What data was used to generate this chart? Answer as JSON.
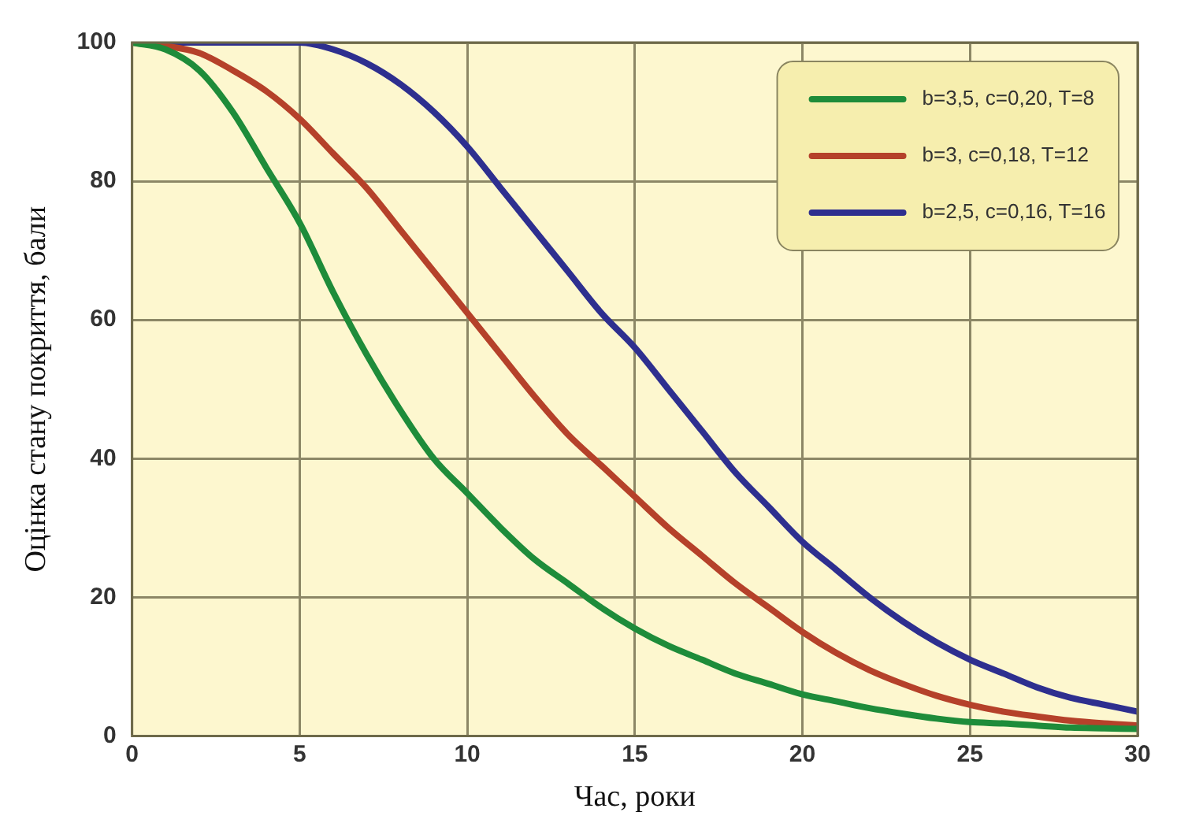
{
  "chart_data": {
    "type": "line",
    "xlabel": "Час, роки",
    "ylabel": "Оцінка стану покриття, бали",
    "x": [
      0,
      1,
      2,
      3,
      4,
      5,
      6,
      7,
      8,
      9,
      10,
      11,
      12,
      13,
      14,
      15,
      16,
      17,
      18,
      19,
      20,
      21,
      22,
      23,
      24,
      25,
      26,
      27,
      28,
      29,
      30
    ],
    "series": [
      {
        "name": "b=3,5, c=0,20, T=8",
        "color": "#1e8c3a",
        "values": [
          100,
          99,
          96,
          90,
          82,
          74,
          64,
          55,
          47,
          40,
          35,
          30,
          25.5,
          22,
          18.5,
          15.5,
          13,
          11,
          9,
          7.5,
          6,
          5,
          4,
          3.2,
          2.5,
          2,
          1.8,
          1.5,
          1.2,
          1.1,
          1
        ]
      },
      {
        "name": "b=3, c=0,18, T=12",
        "color": "#b5412a",
        "values": [
          100,
          99.5,
          98.5,
          96,
          93,
          89,
          84,
          79,
          73,
          67,
          61,
          55,
          49,
          43.5,
          39,
          34.5,
          30,
          26,
          22,
          18.5,
          15,
          12,
          9.5,
          7.5,
          5.8,
          4.5,
          3.5,
          2.8,
          2.2,
          1.8,
          1.5
        ]
      },
      {
        "name": "b=2,5, c=0,16, T=16",
        "color": "#2e2f8f",
        "values": [
          100,
          100,
          100,
          100,
          100,
          100,
          99,
          97,
          94,
          90,
          85,
          79,
          73,
          67,
          61,
          56,
          50,
          44,
          38,
          33,
          28,
          24,
          20,
          16.5,
          13.5,
          11,
          9,
          7,
          5.5,
          4.5,
          3.5
        ]
      }
    ],
    "xlim": [
      0,
      30
    ],
    "xticks": [
      0,
      5,
      10,
      15,
      20,
      25,
      30
    ],
    "ylim": [
      0,
      100
    ],
    "yticks": [
      0,
      20,
      40,
      60,
      80,
      100
    ],
    "grid": true,
    "legend": "top right",
    "marker": "none",
    "line_style": "solid"
  }
}
